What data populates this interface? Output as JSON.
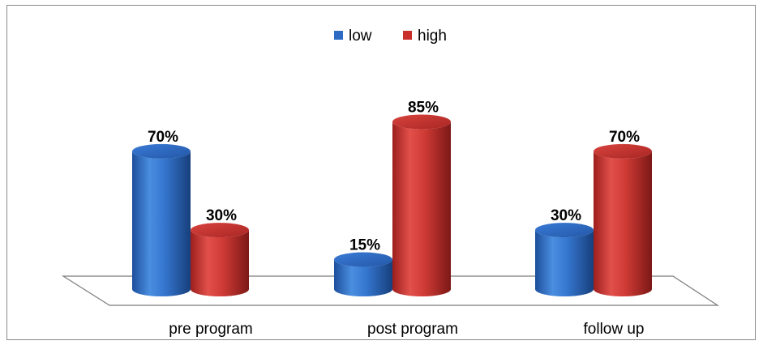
{
  "chart_data": {
    "type": "bar",
    "style": "3d-cylinder",
    "categories": [
      "pre program",
      "post program",
      "follow up"
    ],
    "series": [
      {
        "name": "low",
        "values": [
          70,
          15,
          30
        ],
        "color": "#2e6bc4",
        "labels": [
          "70%",
          "15%",
          "30%"
        ]
      },
      {
        "name": "high",
        "values": [
          30,
          85,
          70
        ],
        "color": "#c9302c",
        "labels": [
          "30%",
          "85%",
          "70%"
        ]
      }
    ],
    "ylim": [
      0,
      100
    ],
    "title": "",
    "xlabel": "",
    "ylabel": "",
    "grid": false,
    "legend_position": "top-center"
  }
}
